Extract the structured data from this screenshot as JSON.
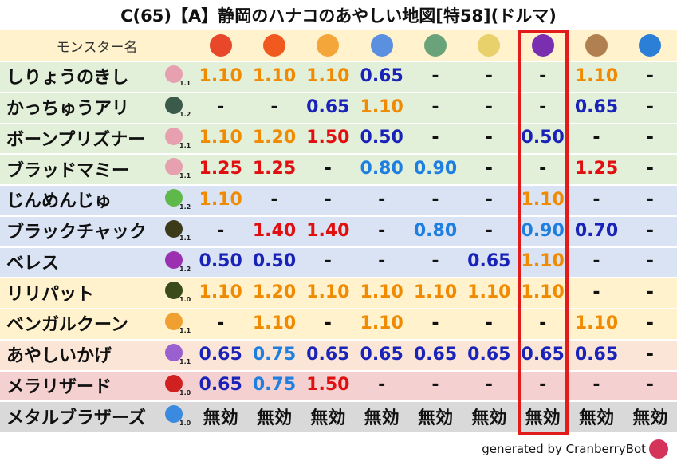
{
  "title": "C(65)【A】静岡のハナコのあやしい地図[特58](ドルマ)",
  "header": {
    "name_column": "モンスター名"
  },
  "table": {
    "rows": [
      {
        "name": "しりょうのきし",
        "scale": "1.1",
        "cells": [
          "1.10",
          "1.10",
          "1.10",
          "0.65",
          "-",
          "-",
          "-",
          "1.10",
          "-"
        ]
      },
      {
        "name": "かっちゅうアリ",
        "scale": "1.2",
        "cells": [
          "-",
          "-",
          "0.65",
          "1.10",
          "-",
          "-",
          "-",
          "0.65",
          "-"
        ]
      },
      {
        "name": "ボーンプリズナー",
        "scale": "1.1",
        "cells": [
          "1.10",
          "1.20",
          "1.50",
          "0.50",
          "-",
          "-",
          "0.50",
          "-",
          "-"
        ]
      },
      {
        "name": "ブラッドマミー",
        "scale": "1.1",
        "cells": [
          "1.25",
          "1.25",
          "-",
          "0.80",
          "0.90",
          "-",
          "-",
          "1.25",
          "-"
        ]
      },
      {
        "name": "じんめんじゅ",
        "scale": "1.2",
        "cells": [
          "1.10",
          "-",
          "-",
          "-",
          "-",
          "-",
          "1.10",
          "-",
          "-"
        ]
      },
      {
        "name": "ブラックチャック",
        "scale": "1.1",
        "cells": [
          "-",
          "1.40",
          "1.40",
          "-",
          "0.80",
          "-",
          "0.90",
          "0.70",
          "-"
        ]
      },
      {
        "name": "ベレス",
        "scale": "1.2",
        "cells": [
          "0.50",
          "0.50",
          "-",
          "-",
          "-",
          "0.65",
          "1.10",
          "-",
          "-"
        ]
      },
      {
        "name": "リリパット",
        "scale": "1.0",
        "cells": [
          "1.10",
          "1.20",
          "1.10",
          "1.10",
          "1.10",
          "1.10",
          "1.10",
          "-",
          "-"
        ]
      },
      {
        "name": "ベンガルクーン",
        "scale": "1.1",
        "cells": [
          "-",
          "1.10",
          "-",
          "1.10",
          "-",
          "-",
          "-",
          "1.10",
          "-"
        ]
      },
      {
        "name": "あやしいかげ",
        "scale": "1.1",
        "cells": [
          "0.65",
          "0.75",
          "0.65",
          "0.65",
          "0.65",
          "0.65",
          "0.65",
          "0.65",
          "-"
        ]
      },
      {
        "name": "メラリザード",
        "scale": "1.0",
        "cells": [
          "0.65",
          "0.75",
          "1.50",
          "-",
          "-",
          "-",
          "-",
          "-",
          "-"
        ]
      },
      {
        "name": "メタルブラザーズ",
        "scale": "1.0",
        "cells": [
          "無効",
          "無効",
          "無効",
          "無効",
          "無効",
          "無効",
          "無効",
          "無効",
          "無効"
        ]
      }
    ]
  },
  "footer": {
    "credit": "generated by CranberryBot"
  }
}
